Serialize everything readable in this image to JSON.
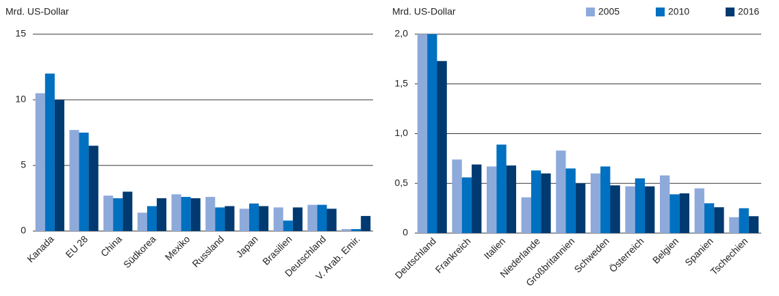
{
  "chart_data": [
    {
      "type": "bar",
      "y_label": "Mrd. US-Dollar",
      "categories": [
        "Kanada",
        "EU 28",
        "China",
        "Südkorea",
        "Mexiko",
        "Russland",
        "Japan",
        "Brasilien",
        "Deutschland",
        "V. Arab. Emir."
      ],
      "series": [
        {
          "color": "#8eaadb",
          "values": [
            10.5,
            7.7,
            2.7,
            1.4,
            2.8,
            2.6,
            1.7,
            1.8,
            2.0,
            0.15
          ]
        },
        {
          "color": "#0070c0",
          "values": [
            12.0,
            7.5,
            2.5,
            1.9,
            2.6,
            1.8,
            2.1,
            0.8,
            2.0,
            0.15
          ]
        },
        {
          "color": "#003a70",
          "values": [
            10.0,
            6.5,
            3.0,
            2.5,
            2.5,
            1.9,
            1.9,
            1.8,
            1.7,
            1.15
          ]
        }
      ],
      "ylim": [
        0,
        15
      ],
      "yticks": [
        0,
        5,
        10,
        15
      ],
      "grid": true
    },
    {
      "type": "bar",
      "y_label": "Mrd. US-Dollar",
      "categories": [
        "Deutschland",
        "Frankreich",
        "Italien",
        "Niederlande",
        "Großbritannien",
        "Schweden",
        "Österreich",
        "Belgien",
        "Spanien",
        "Tschechien"
      ],
      "series": [
        {
          "name": "2005",
          "color": "#8eaadb",
          "values": [
            2.0,
            0.74,
            0.67,
            0.36,
            0.83,
            0.6,
            0.47,
            0.58,
            0.45,
            0.16
          ]
        },
        {
          "name": "2010",
          "color": "#0070c0",
          "values": [
            2.0,
            0.56,
            0.89,
            0.63,
            0.65,
            0.67,
            0.55,
            0.39,
            0.3,
            0.25
          ]
        },
        {
          "name": "2016",
          "color": "#003a70",
          "values": [
            1.73,
            0.69,
            0.68,
            0.6,
            0.5,
            0.48,
            0.47,
            0.4,
            0.26,
            0.17
          ]
        }
      ],
      "ylim": [
        0,
        2
      ],
      "yticks": [
        0,
        {
          "value": 0.5,
          "label": "0,5"
        },
        {
          "value": 1,
          "label": "1,0"
        },
        {
          "value": 1.5,
          "label": "1,5"
        },
        {
          "value": 2,
          "label": "2,0"
        }
      ],
      "grid": true,
      "legend": "top-right"
    }
  ]
}
